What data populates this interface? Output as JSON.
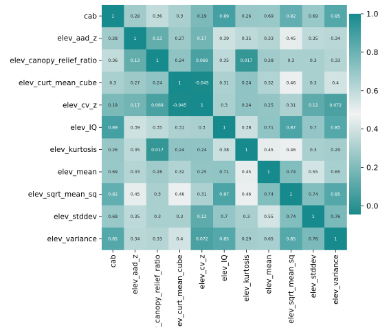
{
  "chart_data": {
    "type": "heatmap",
    "title": "",
    "xlabel": "",
    "ylabel": "",
    "variables": [
      "cab",
      "elev_aad_z",
      "elev_canopy_relief_ratio",
      "elev_curt_mean_cube",
      "elev_cv_z",
      "elev_IQ",
      "elev_kurtosis",
      "elev_mean",
      "elev_sqrt_mean_sq",
      "elev_stddev",
      "elev_variance"
    ],
    "values": [
      [
        1,
        0.28,
        0.36,
        0.3,
        0.19,
        0.89,
        0.26,
        0.69,
        0.82,
        0.69,
        0.85
      ],
      [
        0.28,
        1,
        0.13,
        0.27,
        0.17,
        0.39,
        0.35,
        0.33,
        0.45,
        0.35,
        0.34
      ],
      [
        0.36,
        0.13,
        1,
        0.24,
        0.069,
        0.35,
        0.017,
        0.28,
        0.3,
        0.3,
        0.33
      ],
      [
        0.3,
        0.27,
        0.24,
        1,
        -0.045,
        0.31,
        0.24,
        0.32,
        0.46,
        0.3,
        0.4
      ],
      [
        0.19,
        0.17,
        0.069,
        -0.045,
        1,
        0.3,
        0.24,
        0.25,
        0.31,
        0.12,
        0.072
      ],
      [
        0.89,
        0.39,
        0.35,
        0.31,
        0.3,
        1,
        0.38,
        0.71,
        0.87,
        0.7,
        0.85
      ],
      [
        0.26,
        0.35,
        0.017,
        0.24,
        0.24,
        0.38,
        1,
        0.45,
        0.46,
        0.3,
        0.29
      ],
      [
        0.69,
        0.33,
        0.28,
        0.32,
        0.25,
        0.71,
        0.45,
        1,
        0.74,
        0.55,
        0.65
      ],
      [
        0.82,
        0.45,
        0.3,
        0.46,
        0.31,
        0.87,
        0.46,
        0.74,
        1,
        0.74,
        0.85
      ],
      [
        0.69,
        0.35,
        0.3,
        0.3,
        0.12,
        0.7,
        0.3,
        0.55,
        0.74,
        1,
        0.76
      ],
      [
        0.85,
        0.34,
        0.33,
        0.4,
        0.072,
        0.85,
        0.29,
        0.65,
        0.85,
        0.76,
        1
      ]
    ],
    "color_range": [
      -0.045,
      1
    ],
    "colormap": {
      "low": "#1b8a8a",
      "mid": "#f2f2f2",
      "high": "#168a8d"
    },
    "colorbar": {
      "ticks": [
        "0.0",
        "0.2",
        "0.4",
        "0.6",
        "0.8",
        "1.0"
      ],
      "tick_values": [
        0,
        0.2,
        0.4,
        0.6,
        0.8,
        1.0
      ]
    },
    "annotated": true,
    "grid": false
  }
}
